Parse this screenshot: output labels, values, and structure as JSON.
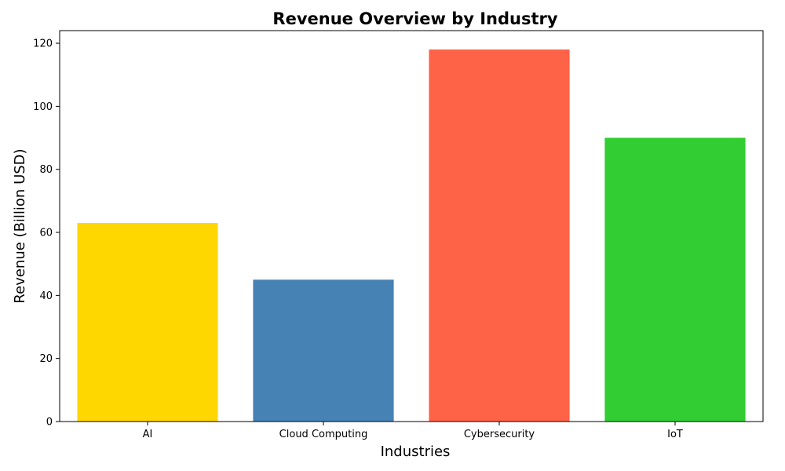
{
  "chart_data": {
    "type": "bar",
    "title": "Revenue Overview by Industry",
    "xlabel": "Industries",
    "ylabel": "Revenue (Billion USD)",
    "categories": [
      "AI",
      "Cloud Computing",
      "Cybersecurity",
      "IoT"
    ],
    "values": [
      63,
      45,
      118,
      90
    ],
    "colors": [
      "#ffd700",
      "#4682b4",
      "#ff6347",
      "#32cd32"
    ],
    "ylim": [
      0,
      124
    ],
    "yticks": [
      0,
      20,
      40,
      60,
      80,
      100,
      120
    ],
    "grid": false,
    "legend": "none"
  }
}
